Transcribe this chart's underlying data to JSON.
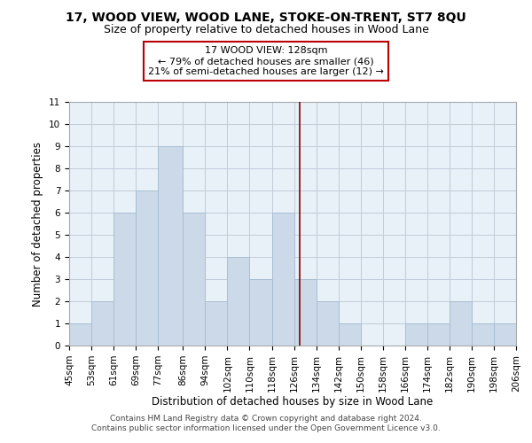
{
  "title": "17, WOOD VIEW, WOOD LANE, STOKE-ON-TRENT, ST7 8QU",
  "subtitle": "Size of property relative to detached houses in Wood Lane",
  "xlabel": "Distribution of detached houses by size in Wood Lane",
  "ylabel": "Number of detached properties",
  "bin_edges": [
    45,
    53,
    61,
    69,
    77,
    86,
    94,
    102,
    110,
    118,
    126,
    134,
    142,
    150,
    158,
    166,
    174,
    182,
    190,
    198,
    206
  ],
  "counts": [
    1,
    2,
    6,
    7,
    9,
    6,
    2,
    4,
    3,
    6,
    3,
    2,
    1,
    0,
    0,
    1,
    1,
    2,
    1,
    1
  ],
  "bar_color": "#ccd9e8",
  "bar_edgecolor": "#a8bfd4",
  "plot_bg_color": "#e8f0f8",
  "property_line_x": 128,
  "ylim": [
    0,
    11
  ],
  "yticks": [
    0,
    1,
    2,
    3,
    4,
    5,
    6,
    7,
    8,
    9,
    10,
    11
  ],
  "x_tick_labels": [
    "45sqm",
    "53sqm",
    "61sqm",
    "69sqm",
    "77sqm",
    "86sqm",
    "94sqm",
    "102sqm",
    "110sqm",
    "118sqm",
    "126sqm",
    "134sqm",
    "142sqm",
    "150sqm",
    "158sqm",
    "166sqm",
    "174sqm",
    "182sqm",
    "190sqm",
    "198sqm",
    "206sqm"
  ],
  "annotation_title": "17 WOOD VIEW: 128sqm",
  "annotation_line1": "← 79% of detached houses are smaller (46)",
  "annotation_line2": "21% of semi-detached houses are larger (12) →",
  "footer_line1": "Contains HM Land Registry data © Crown copyright and database right 2024.",
  "footer_line2": "Contains public sector information licensed under the Open Government Licence v3.0.",
  "grid_color": "#c0ccd8",
  "title_fontsize": 10,
  "subtitle_fontsize": 9,
  "axis_label_fontsize": 8.5,
  "tick_fontsize": 7.5,
  "annotation_fontsize": 8,
  "annotation_box_edgecolor": "#bb0000",
  "property_line_color": "#880000",
  "footer_fontsize": 6.5,
  "footer_color": "#444444"
}
